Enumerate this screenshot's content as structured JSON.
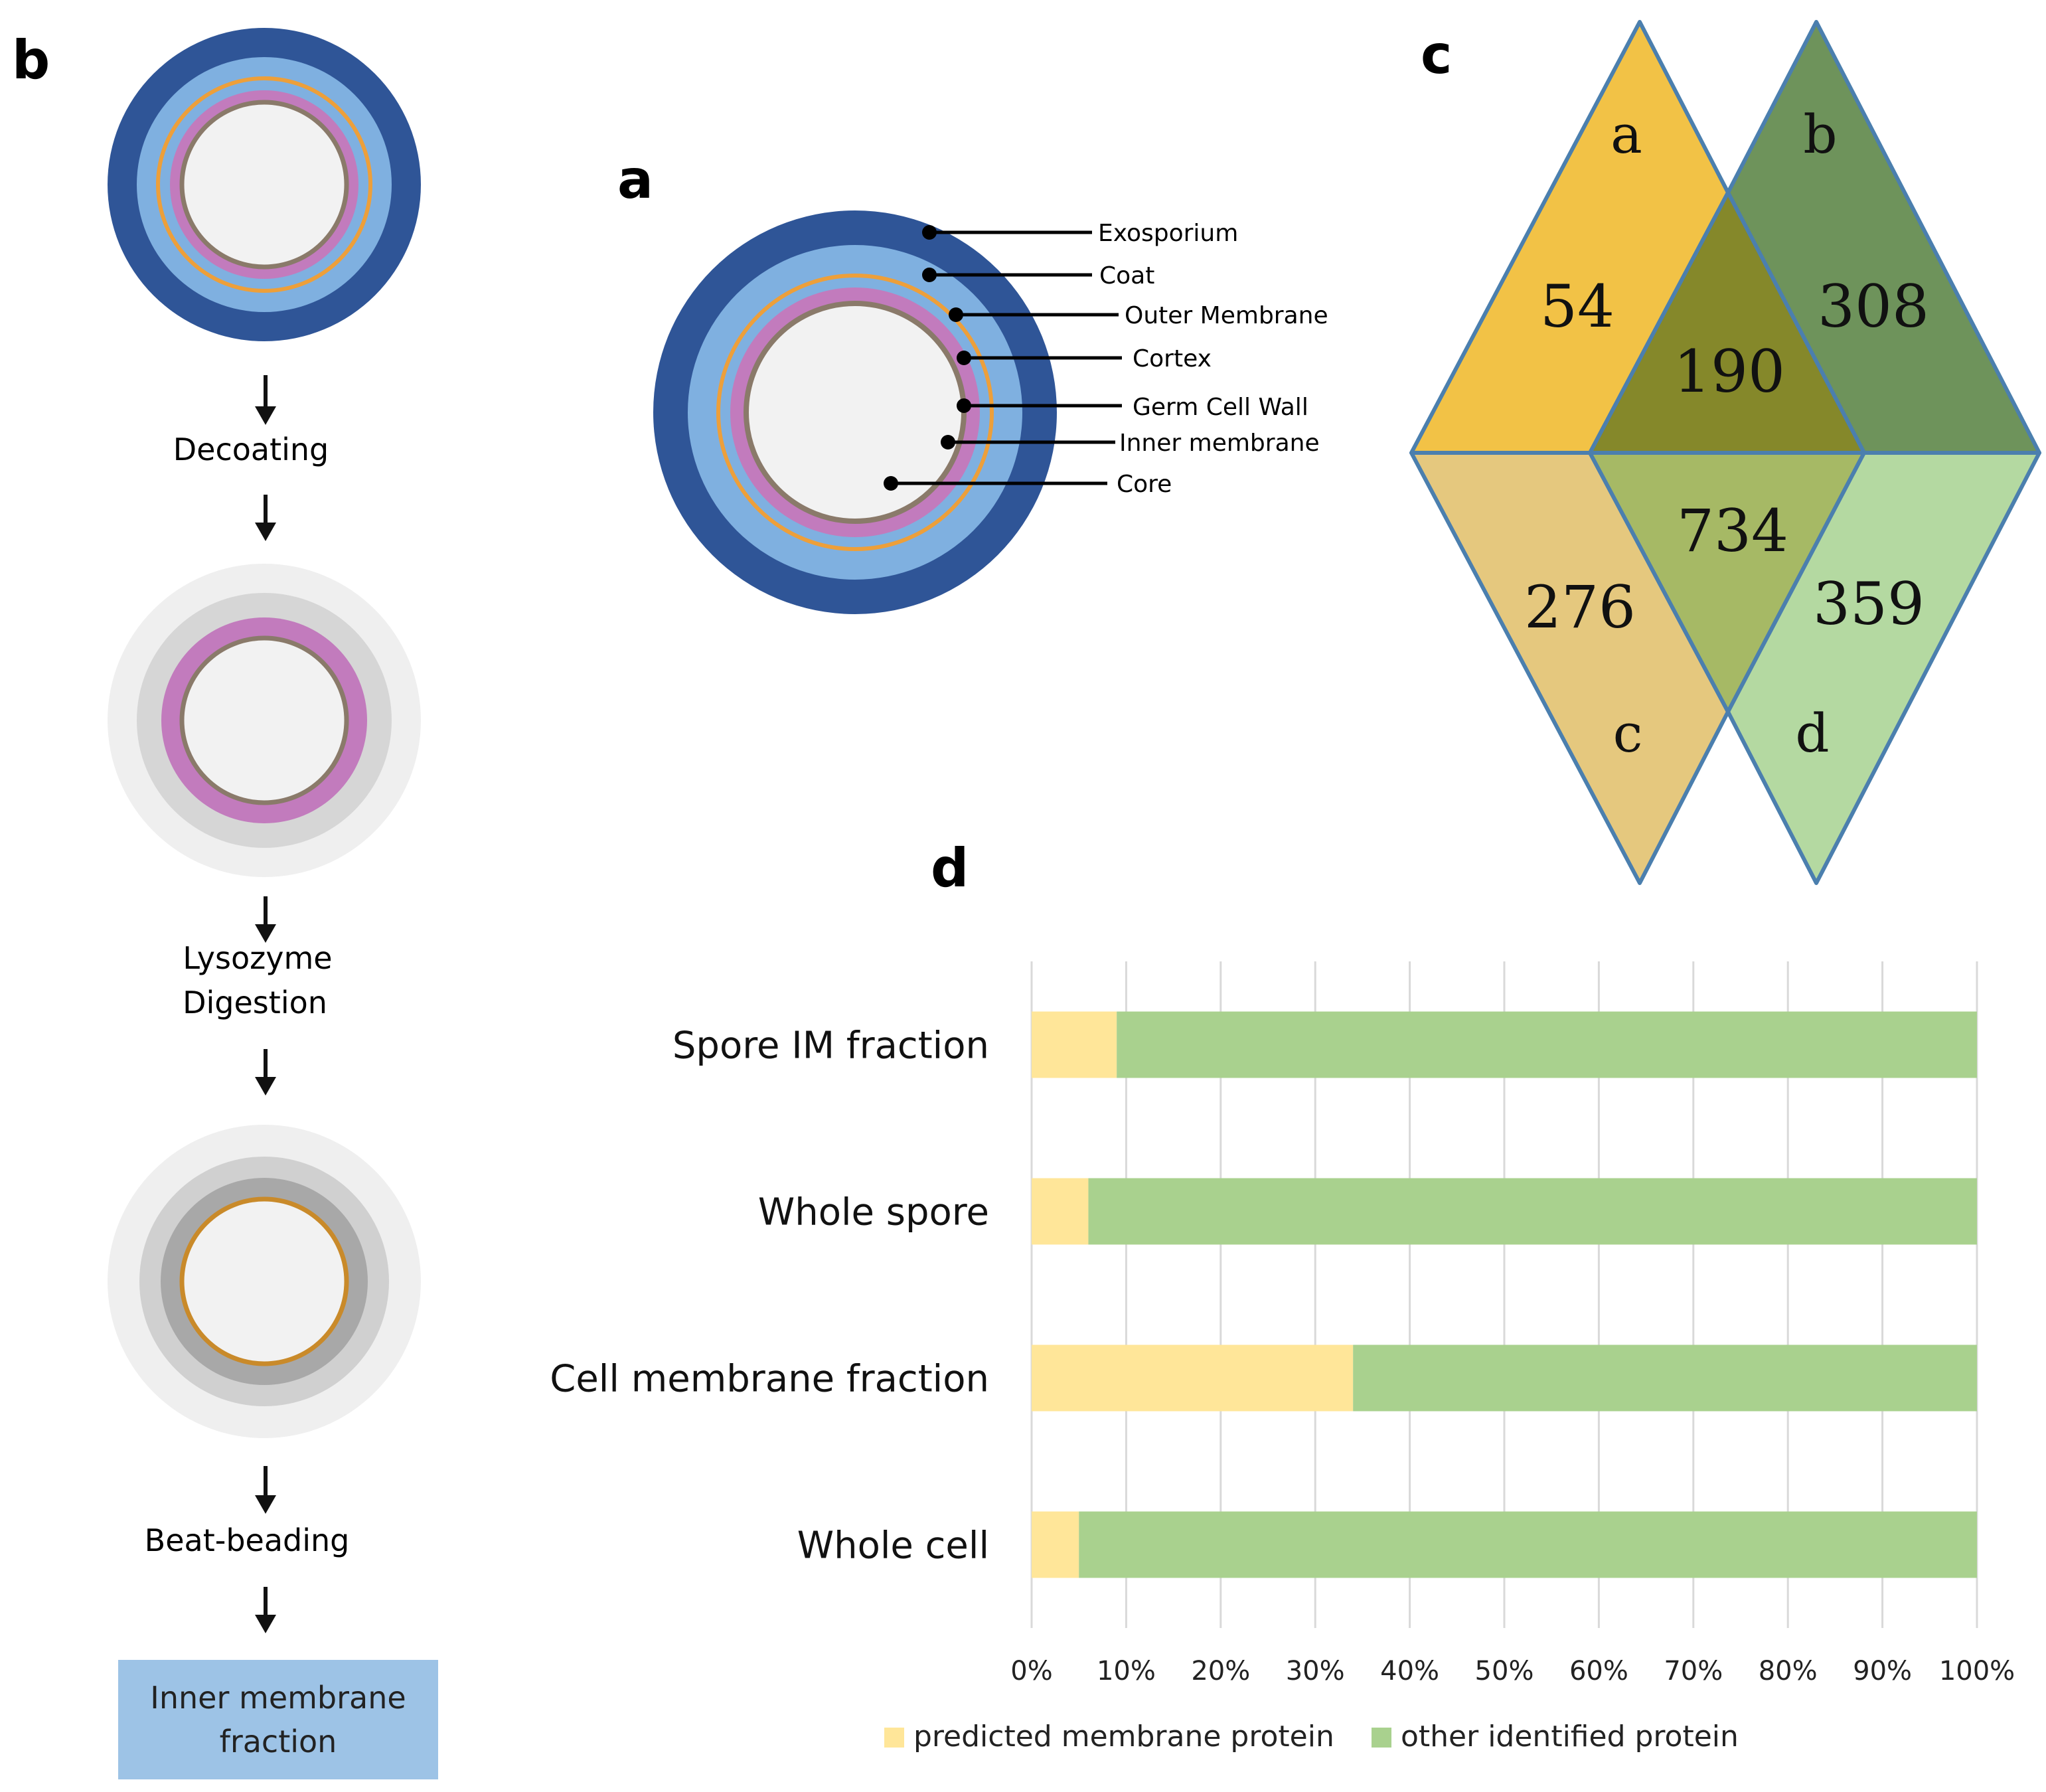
{
  "panel_letters": {
    "a": "a",
    "b": "b",
    "c": "c",
    "d": "d"
  },
  "colors": {
    "exosporium": "#2f5597",
    "coat": "#7fb0e0",
    "outer_membrane": "#ed9f3a",
    "cortex": "#c27bbd",
    "germ_wall": "#8a7a6a",
    "core": "#f2f2f2",
    "box": "#9dc3e6",
    "yellow": "#ffe699",
    "green": "#a9d18e"
  },
  "panel_a": {
    "layers": [
      "Exosporium",
      "Coat",
      "Outer Membrane",
      "Cortex",
      "Germ Cell Wall",
      "Inner membrane",
      "Core"
    ]
  },
  "panel_b": {
    "steps": [
      "Decoating",
      "Lysozyme",
      "Digestion",
      "Beat-beading"
    ],
    "result": [
      "Inner membrane",
      "fraction"
    ]
  },
  "panel_c": {
    "sets": [
      "a",
      "b",
      "c",
      "d"
    ],
    "regions": {
      "a_only": "54",
      "b_only": "308",
      "ab": "190",
      "c_only": "276",
      "cd": "734",
      "d_only": "359"
    }
  },
  "chart_data": {
    "type": "bar",
    "orientation": "horizontal",
    "stacked": true,
    "categories": [
      "Spore IM fraction",
      "Whole spore",
      "Cell membrane fraction",
      "Whole cell"
    ],
    "series": [
      {
        "name": "predicted membrane protein",
        "color": "#ffe699",
        "values": [
          9,
          6,
          34,
          5
        ]
      },
      {
        "name": "other identified protein",
        "color": "#a9d18e",
        "values": [
          91,
          94,
          66,
          95
        ]
      }
    ],
    "xticks": [
      "0%",
      "10%",
      "20%",
      "30%",
      "40%",
      "50%",
      "60%",
      "70%",
      "80%",
      "90%",
      "100%"
    ],
    "xlim": [
      0,
      100
    ],
    "grid": true,
    "legend": "bottom"
  }
}
